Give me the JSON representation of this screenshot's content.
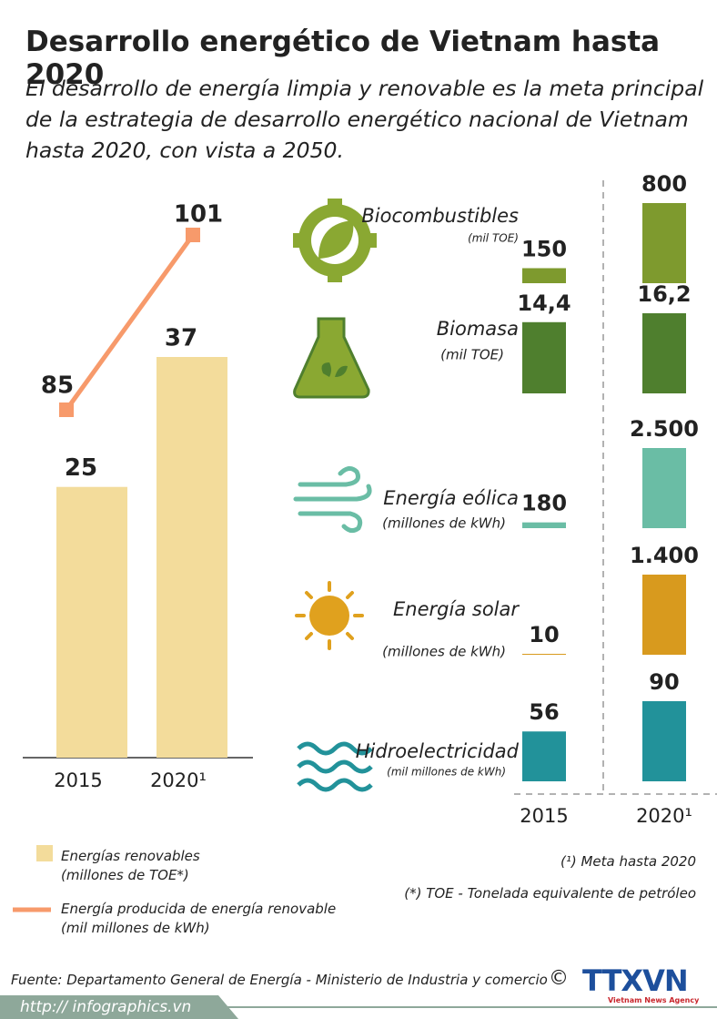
{
  "header": {
    "title": "Desarrollo energético de Vietnam hasta 2020",
    "subtitle": "El desarrollo de energía limpia y renovable es la meta principal de la estrategia de desarrollo energético nacional de Vietnam hasta 2020, con vista a 2050."
  },
  "chart_data": [
    {
      "type": "bar-line",
      "categories": [
        "2015",
        "2020¹"
      ],
      "series": [
        {
          "name": "Energías renovables (millones de TOE*)",
          "color": "#f3dc9b",
          "values": [
            25,
            37
          ]
        },
        {
          "name": "Energía producida de energía renovable (mil millones de kWh)",
          "color": "#f79a6b",
          "values": [
            85,
            101
          ],
          "axis": "y2"
        }
      ]
    },
    {
      "type": "bar-rows",
      "categories": [
        "2015",
        "2020¹"
      ],
      "series": [
        {
          "name": "Biocombustibles",
          "unit": "(mil TOE)",
          "color": "#7e9a2e",
          "values": [
            150,
            800
          ]
        },
        {
          "name": "Biomasa",
          "unit": "(mil TOE)",
          "color": "#4f7f2e",
          "values": [
            14.4,
            16.2
          ],
          "value_labels": [
            "14,4",
            "16,2"
          ]
        },
        {
          "name": "Energía eólica",
          "unit": "(millones de kWh)",
          "color": "#6abda5",
          "values": [
            180,
            2500
          ],
          "value_labels": [
            "180",
            "2.500"
          ]
        },
        {
          "name": "Energía solar",
          "unit": "(millones de kWh)",
          "color": "#d89a1e",
          "values": [
            10,
            1400
          ],
          "value_labels": [
            "10",
            "1.400"
          ]
        },
        {
          "name": "Hidroelectricidad",
          "unit": "(mil millones de kWh)",
          "color": "#22929a",
          "values": [
            56,
            90
          ]
        }
      ]
    }
  ],
  "notes": [
    "(¹) Meta hasta 2020",
    "(*) TOE - Tonelada equivalente de petróleo"
  ],
  "footer": {
    "source": "Fuente: Departamento General de Energía - Ministerio de Industria y comercio",
    "copyright": "©",
    "logo": "TTXVN",
    "agency": "Vietnam News Agency",
    "url": "http:// infographics.vn"
  }
}
